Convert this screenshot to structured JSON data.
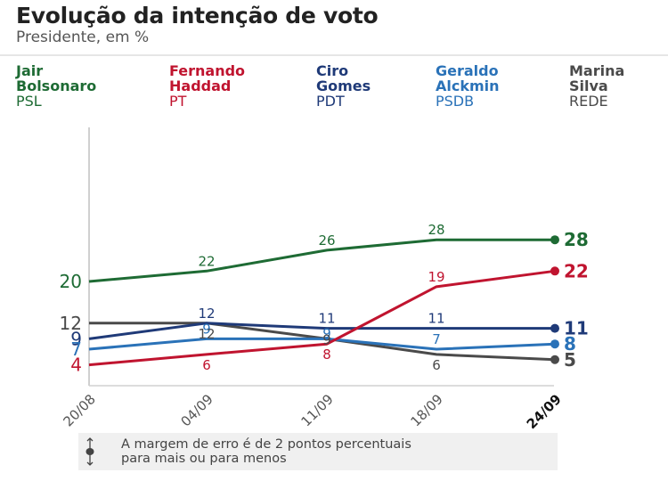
{
  "header": {
    "title": "Evolução da intenção de voto",
    "subtitle": "Presidente, em %"
  },
  "legend": [
    {
      "name": "Jair\nBolsonaro",
      "party": "PSL",
      "color": "#1e6b34"
    },
    {
      "name": "Fernando\nHaddad",
      "party": "PT",
      "color": "#c0142f"
    },
    {
      "name": "Ciro\nGomes",
      "party": "PDT",
      "color": "#1f3a78"
    },
    {
      "name": "Geraldo\nAlckmin",
      "party": "PSDB",
      "color": "#2a72b8"
    },
    {
      "name": "Marina\nSilva",
      "party": "REDE",
      "color": "#4a4a4a"
    }
  ],
  "note": {
    "icon": "margin-of-error-icon",
    "line1": "A margem de erro é de 2 pontos percentuais",
    "line2": "para mais ou para menos"
  },
  "chart_data": {
    "type": "line",
    "title": "Evolução da intenção de voto",
    "subtitle": "Presidente, em %",
    "xlabel": "",
    "ylabel": "",
    "x": [
      "20/08",
      "04/09",
      "11/09",
      "18/09",
      "24/09"
    ],
    "ylim": [
      0,
      28
    ],
    "grid": false,
    "legend_position": "top",
    "series": [
      {
        "name": "Jair Bolsonaro",
        "party": "PSL",
        "color": "#1e6b34",
        "values": [
          20,
          22,
          26,
          28,
          28
        ],
        "labels": [
          "20",
          "22",
          "26",
          "28",
          "28"
        ],
        "label_pos": [
          "left",
          "above",
          "above",
          "above",
          "right"
        ]
      },
      {
        "name": "Fernando Haddad",
        "party": "PT",
        "color": "#c0142f",
        "values": [
          4,
          6,
          8,
          19,
          22
        ],
        "labels": [
          "4",
          "6",
          "8",
          "19",
          "22"
        ],
        "label_pos": [
          "left",
          "below",
          "below",
          "above",
          "right"
        ]
      },
      {
        "name": "Ciro Gomes",
        "party": "PDT",
        "color": "#1f3a78",
        "values": [
          9,
          12,
          11,
          11,
          11
        ],
        "labels": [
          "9",
          "12",
          "11",
          "11",
          "11"
        ],
        "label_pos": [
          "left",
          "above",
          "above",
          "above",
          "right"
        ]
      },
      {
        "name": "Geraldo Alckmin",
        "party": "PSDB",
        "color": "#2a72b8",
        "values": [
          7,
          9,
          9,
          7,
          8
        ],
        "labels": [
          "7",
          "9",
          "9",
          "7",
          "8"
        ],
        "label_pos": [
          "left",
          "above",
          "onpoint-up",
          "above",
          "right"
        ]
      },
      {
        "name": "Marina Silva",
        "party": "REDE",
        "color": "#4a4a4a",
        "values": [
          12,
          12,
          9,
          6,
          5
        ],
        "labels": [
          "12",
          "12",
          "9",
          "6",
          "5"
        ],
        "label_pos": [
          "left",
          "below",
          "onpoint",
          "below",
          "right"
        ]
      }
    ]
  }
}
